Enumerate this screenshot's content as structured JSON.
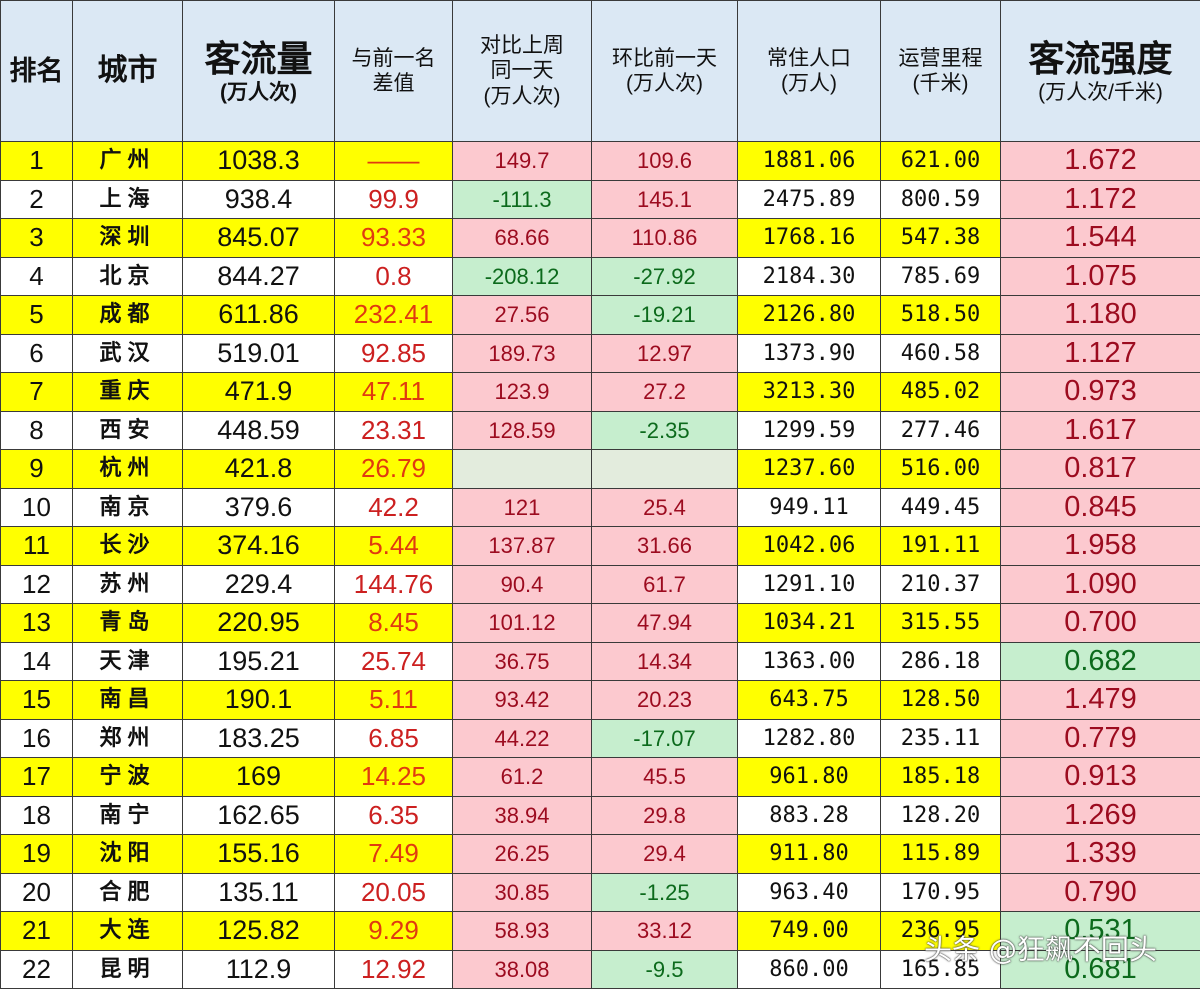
{
  "header": {
    "rank": "排名",
    "city": "城市",
    "flow_title": "客流量",
    "flow_unit": "(万人次)",
    "diff_title_1": "与前一名",
    "diff_title_2": "差值",
    "week_title_1": "对比上周",
    "week_title_2": "同一天",
    "week_unit": "(万人次)",
    "day_title": "环比前一天",
    "day_unit": "(万人次)",
    "pop_title": "常住人口",
    "pop_unit": "(万人)",
    "km_title": "运营里程",
    "km_unit": "(千米)",
    "int_title": "客流强度",
    "int_unit": "(万人次/千米)"
  },
  "colors": {
    "header_bg": "#dbe8f4",
    "highlight_yellow": "#ffff00",
    "positive_bg": "#fcc9cf",
    "positive_text": "#9c0b1f",
    "negative_bg": "#c6eece",
    "negative_text": "#0c6a1c",
    "diff_text": "#cc2020"
  },
  "rows": [
    {
      "rank": "1",
      "city": "广州",
      "flow": "1038.3",
      "diff": "——",
      "week": "149.7",
      "day": "109.6",
      "pop": "1881.06",
      "km": "621.00",
      "intensity": "1.672"
    },
    {
      "rank": "2",
      "city": "上海",
      "flow": "938.4",
      "diff": "99.9",
      "week": "-111.3",
      "day": "145.1",
      "pop": "2475.89",
      "km": "800.59",
      "intensity": "1.172"
    },
    {
      "rank": "3",
      "city": "深圳",
      "flow": "845.07",
      "diff": "93.33",
      "week": "68.66",
      "day": "110.86",
      "pop": "1768.16",
      "km": "547.38",
      "intensity": "1.544"
    },
    {
      "rank": "4",
      "city": "北京",
      "flow": "844.27",
      "diff": "0.8",
      "week": "-208.12",
      "day": "-27.92",
      "pop": "2184.30",
      "km": "785.69",
      "intensity": "1.075"
    },
    {
      "rank": "5",
      "city": "成都",
      "flow": "611.86",
      "diff": "232.41",
      "week": "27.56",
      "day": "-19.21",
      "pop": "2126.80",
      "km": "518.50",
      "intensity": "1.180"
    },
    {
      "rank": "6",
      "city": "武汉",
      "flow": "519.01",
      "diff": "92.85",
      "week": "189.73",
      "day": "12.97",
      "pop": "1373.90",
      "km": "460.58",
      "intensity": "1.127"
    },
    {
      "rank": "7",
      "city": "重庆",
      "flow": "471.9",
      "diff": "47.11",
      "week": "123.9",
      "day": "27.2",
      "pop": "3213.30",
      "km": "485.02",
      "intensity": "0.973"
    },
    {
      "rank": "8",
      "city": "西安",
      "flow": "448.59",
      "diff": "23.31",
      "week": "128.59",
      "day": "-2.35",
      "pop": "1299.59",
      "km": "277.46",
      "intensity": "1.617"
    },
    {
      "rank": "9",
      "city": "杭州",
      "flow": "421.8",
      "diff": "26.79",
      "week": "",
      "day": "",
      "pop": "1237.60",
      "km": "516.00",
      "intensity": "0.817"
    },
    {
      "rank": "10",
      "city": "南京",
      "flow": "379.6",
      "diff": "42.2",
      "week": "121",
      "day": "25.4",
      "pop": "949.11",
      "km": "449.45",
      "intensity": "0.845"
    },
    {
      "rank": "11",
      "city": "长沙",
      "flow": "374.16",
      "diff": "5.44",
      "week": "137.87",
      "day": "31.66",
      "pop": "1042.06",
      "km": "191.11",
      "intensity": "1.958"
    },
    {
      "rank": "12",
      "city": "苏州",
      "flow": "229.4",
      "diff": "144.76",
      "week": "90.4",
      "day": "61.7",
      "pop": "1291.10",
      "km": "210.37",
      "intensity": "1.090"
    },
    {
      "rank": "13",
      "city": "青岛",
      "flow": "220.95",
      "diff": "8.45",
      "week": "101.12",
      "day": "47.94",
      "pop": "1034.21",
      "km": "315.55",
      "intensity": "0.700"
    },
    {
      "rank": "14",
      "city": "天津",
      "flow": "195.21",
      "diff": "25.74",
      "week": "36.75",
      "day": "14.34",
      "pop": "1363.00",
      "km": "286.18",
      "intensity": "0.682"
    },
    {
      "rank": "15",
      "city": "南昌",
      "flow": "190.1",
      "diff": "5.11",
      "week": "93.42",
      "day": "20.23",
      "pop": "643.75",
      "km": "128.50",
      "intensity": "1.479"
    },
    {
      "rank": "16",
      "city": "郑州",
      "flow": "183.25",
      "diff": "6.85",
      "week": "44.22",
      "day": "-17.07",
      "pop": "1282.80",
      "km": "235.11",
      "intensity": "0.779"
    },
    {
      "rank": "17",
      "city": "宁波",
      "flow": "169",
      "diff": "14.25",
      "week": "61.2",
      "day": "45.5",
      "pop": "961.80",
      "km": "185.18",
      "intensity": "0.913"
    },
    {
      "rank": "18",
      "city": "南宁",
      "flow": "162.65",
      "diff": "6.35",
      "week": "38.94",
      "day": "29.8",
      "pop": "883.28",
      "km": "128.20",
      "intensity": "1.269"
    },
    {
      "rank": "19",
      "city": "沈阳",
      "flow": "155.16",
      "diff": "7.49",
      "week": "26.25",
      "day": "29.4",
      "pop": "911.80",
      "km": "115.89",
      "intensity": "1.339"
    },
    {
      "rank": "20",
      "city": "合肥",
      "flow": "135.11",
      "diff": "20.05",
      "week": "30.85",
      "day": "-1.25",
      "pop": "963.40",
      "km": "170.95",
      "intensity": "0.790"
    },
    {
      "rank": "21",
      "city": "大连",
      "flow": "125.82",
      "diff": "9.29",
      "week": "58.93",
      "day": "33.12",
      "pop": "749.00",
      "km": "236.95",
      "intensity": "0.531"
    },
    {
      "rank": "22",
      "city": "昆明",
      "flow": "112.9",
      "diff": "12.92",
      "week": "38.08",
      "day": "-9.5",
      "pop": "860.00",
      "km": "165.85",
      "intensity": "0.681"
    }
  ],
  "watermark": "头条 @狂飙不回头"
}
